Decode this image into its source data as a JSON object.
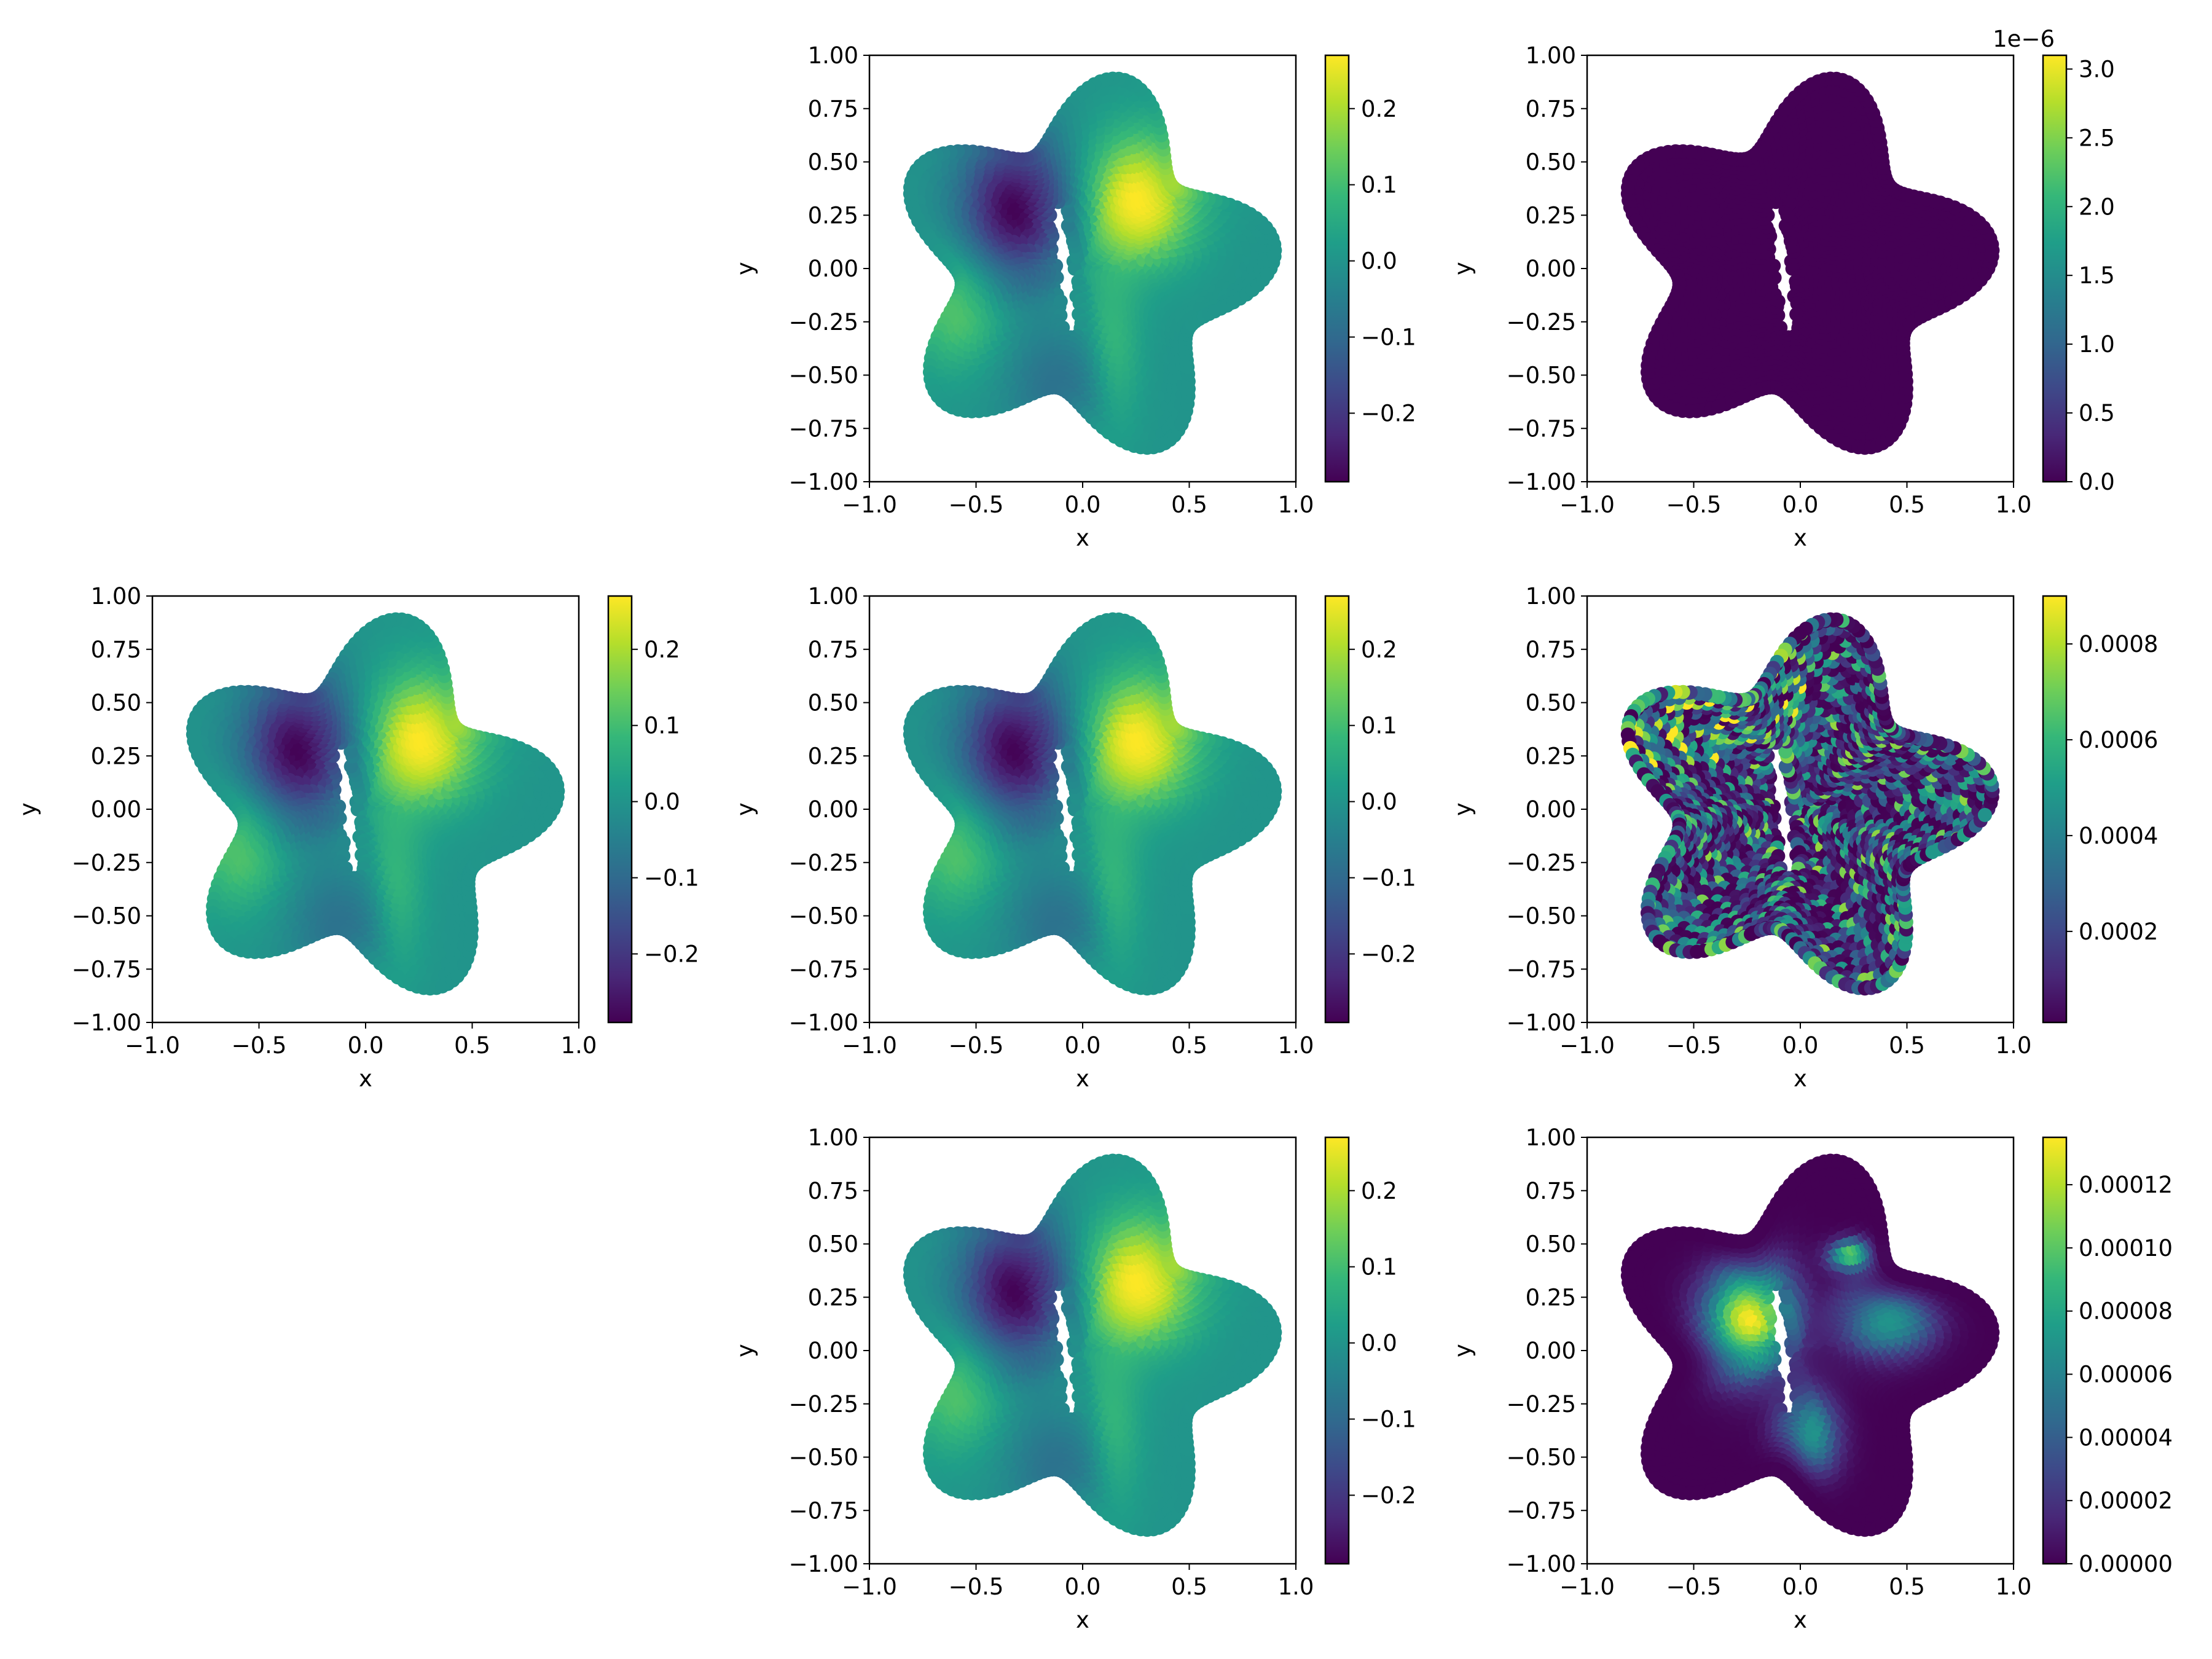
{
  "figure": {
    "layout": "3x3 grid of scatter panels with colorbars; top-left and bottom-left cells empty"
  },
  "colors": {
    "cmap": [
      "#440154",
      "#482878",
      "#3e4989",
      "#31688e",
      "#26828e",
      "#1f9e89",
      "#35b779",
      "#6ece58",
      "#b5de2b",
      "#fde725"
    ],
    "axis": "#000000",
    "background": "#ffffff"
  },
  "chart_data": [
    {
      "id": "r0c1",
      "type": "scatter",
      "row": 0,
      "col": 1,
      "xlabel": "x",
      "ylabel": "y",
      "xlim": [
        -1.0,
        1.0
      ],
      "ylim": [
        -1.0,
        1.0
      ],
      "xticks": [
        "−1.0",
        "−0.5",
        "0.0",
        "0.5",
        "1.0"
      ],
      "yticks": [
        "−1.00",
        "−0.75",
        "−0.50",
        "−0.25",
        "0.00",
        "0.25",
        "0.50",
        "0.75",
        "1.00"
      ],
      "field": "solution",
      "colorbar": {
        "min": -0.29,
        "max": 0.27,
        "ticks": [
          -0.2,
          -0.1,
          0.0,
          0.1,
          0.2
        ],
        "tick_labels": [
          "−0.2",
          "−0.1",
          "0.0",
          "0.1",
          "0.2"
        ],
        "offset_label": ""
      }
    },
    {
      "id": "r0c2",
      "type": "scatter",
      "row": 0,
      "col": 2,
      "xlabel": "x",
      "ylabel": "y",
      "xlim": [
        -1.0,
        1.0
      ],
      "ylim": [
        -1.0,
        1.0
      ],
      "xticks": [
        "−1.0",
        "−0.5",
        "0.0",
        "0.5",
        "1.0"
      ],
      "yticks": [
        "−1.00",
        "−0.75",
        "−0.50",
        "−0.25",
        "0.00",
        "0.25",
        "0.50",
        "0.75",
        "1.00"
      ],
      "field": "err_smooth_two",
      "colorbar": {
        "min": 0.0,
        "max": 3.1,
        "ticks": [
          0.0,
          0.5,
          1.0,
          1.5,
          2.0,
          2.5,
          3.0
        ],
        "tick_labels": [
          "0.0",
          "0.5",
          "1.0",
          "1.5",
          "2.0",
          "2.5",
          "3.0"
        ],
        "offset_label": "1e−6"
      }
    },
    {
      "id": "r1c0",
      "type": "scatter",
      "row": 1,
      "col": 0,
      "xlabel": "x",
      "ylabel": "y",
      "xlim": [
        -1.0,
        1.0
      ],
      "ylim": [
        -1.0,
        1.0
      ],
      "xticks": [
        "−1.0",
        "−0.5",
        "0.0",
        "0.5",
        "1.0"
      ],
      "yticks": [
        "−1.00",
        "−0.75",
        "−0.50",
        "−0.25",
        "0.00",
        "0.25",
        "0.50",
        "0.75",
        "1.00"
      ],
      "field": "solution",
      "colorbar": {
        "min": -0.29,
        "max": 0.27,
        "ticks": [
          -0.2,
          -0.1,
          0.0,
          0.1,
          0.2
        ],
        "tick_labels": [
          "−0.2",
          "−0.1",
          "0.0",
          "0.1",
          "0.2"
        ],
        "offset_label": ""
      }
    },
    {
      "id": "r1c1",
      "type": "scatter",
      "row": 1,
      "col": 1,
      "xlabel": "x",
      "ylabel": "y",
      "xlim": [
        -1.0,
        1.0
      ],
      "ylim": [
        -1.0,
        1.0
      ],
      "xticks": [
        "−1.0",
        "−0.5",
        "0.0",
        "0.5",
        "1.0"
      ],
      "yticks": [
        "−1.00",
        "−0.75",
        "−0.50",
        "−0.25",
        "0.00",
        "0.25",
        "0.50",
        "0.75",
        "1.00"
      ],
      "field": "solution",
      "colorbar": {
        "min": -0.29,
        "max": 0.27,
        "ticks": [
          -0.2,
          -0.1,
          0.0,
          0.1,
          0.2
        ],
        "tick_labels": [
          "−0.2",
          "−0.1",
          "0.0",
          "0.1",
          "0.2"
        ],
        "offset_label": ""
      }
    },
    {
      "id": "r1c2",
      "type": "scatter",
      "row": 1,
      "col": 2,
      "xlabel": "x",
      "ylabel": "y",
      "xlim": [
        -1.0,
        1.0
      ],
      "ylim": [
        -1.0,
        1.0
      ],
      "xticks": [
        "−1.0",
        "−0.5",
        "0.0",
        "0.5",
        "1.0"
      ],
      "yticks": [
        "−1.00",
        "−0.75",
        "−0.50",
        "−0.25",
        "0.00",
        "0.25",
        "0.50",
        "0.75",
        "1.00"
      ],
      "field": "err_noise",
      "colorbar": {
        "min": 1e-05,
        "max": 0.0009,
        "ticks": [
          0.0002,
          0.0004,
          0.0006,
          0.0008
        ],
        "tick_labels": [
          "0.0002",
          "0.0004",
          "0.0006",
          "0.0008"
        ],
        "offset_label": ""
      }
    },
    {
      "id": "r2c1",
      "type": "scatter",
      "row": 2,
      "col": 1,
      "xlabel": "x",
      "ylabel": "y",
      "xlim": [
        -1.0,
        1.0
      ],
      "ylim": [
        -1.0,
        1.0
      ],
      "xticks": [
        "−1.0",
        "−0.5",
        "0.0",
        "0.5",
        "1.0"
      ],
      "yticks": [
        "−1.00",
        "−0.75",
        "−0.50",
        "−0.25",
        "0.00",
        "0.25",
        "0.50",
        "0.75",
        "1.00"
      ],
      "field": "solution",
      "colorbar": {
        "min": -0.29,
        "max": 0.27,
        "ticks": [
          -0.2,
          -0.1,
          0.0,
          0.1,
          0.2
        ],
        "tick_labels": [
          "−0.2",
          "−0.1",
          "0.0",
          "0.1",
          "0.2"
        ],
        "offset_label": ""
      }
    },
    {
      "id": "r2c2",
      "type": "scatter",
      "row": 2,
      "col": 2,
      "xlabel": "x",
      "ylabel": "y",
      "xlim": [
        -1.0,
        1.0
      ],
      "ylim": [
        -1.0,
        1.0
      ],
      "xticks": [
        "−1.0",
        "−0.5",
        "0.0",
        "0.5",
        "1.0"
      ],
      "yticks": [
        "−1.00",
        "−0.75",
        "−0.50",
        "−0.25",
        "0.00",
        "0.25",
        "0.50",
        "0.75",
        "1.00"
      ],
      "field": "err_smooth_four",
      "colorbar": {
        "min": 0.0,
        "max": 0.000135,
        "ticks": [
          0.0,
          2e-05,
          4e-05,
          6e-05,
          8e-05,
          0.0001,
          0.00012
        ],
        "tick_labels": [
          "0.00000",
          "0.00002",
          "0.00004",
          "0.00006",
          "0.00008",
          "0.00010",
          "0.00012"
        ],
        "offset_label": ""
      }
    }
  ]
}
